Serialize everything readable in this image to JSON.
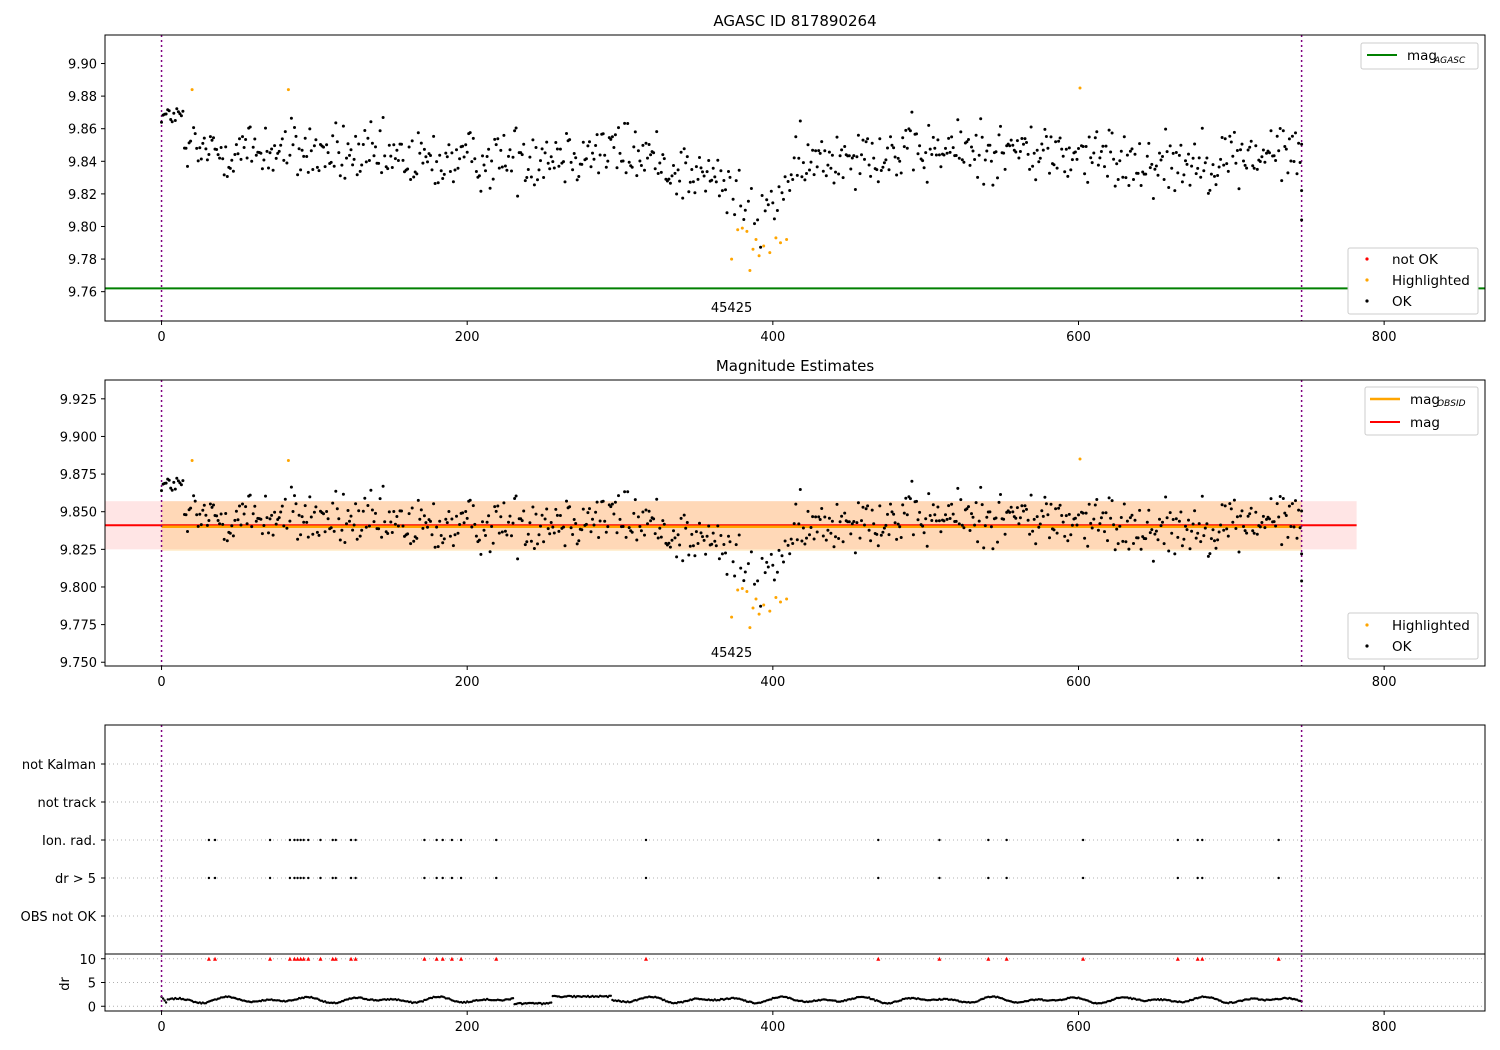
{
  "chart_data": [
    {
      "type": "scatter",
      "title": "AGASC ID 817890264",
      "xlim": [
        -37,
        866
      ],
      "ylim": [
        9.742,
        9.9175
      ],
      "xticks": [
        "0",
        "200",
        "400",
        "600",
        "800"
      ],
      "yticks": [
        "9.76",
        "9.78",
        "9.80",
        "9.82",
        "9.84",
        "9.86",
        "9.88",
        "9.90"
      ],
      "vlines": [
        0,
        746
      ],
      "hline": {
        "label": "mag",
        "sub": "AGASC",
        "y": 9.762,
        "color": "#008000"
      },
      "obsid_label": {
        "text": "45425",
        "x": 373
      },
      "legend_points": [
        "not OK",
        "Highlighted",
        "OK"
      ],
      "highlighted": [
        [
          20,
          9.884
        ],
        [
          83,
          9.884
        ],
        [
          373,
          9.78
        ],
        [
          377,
          9.798
        ],
        [
          380,
          9.799
        ],
        [
          383,
          9.797
        ],
        [
          385,
          9.773
        ],
        [
          387,
          9.786
        ],
        [
          389,
          9.792
        ],
        [
          391,
          9.782
        ],
        [
          394,
          9.788
        ],
        [
          398,
          9.784
        ],
        [
          402,
          9.793
        ],
        [
          405,
          9.79
        ],
        [
          409,
          9.792
        ],
        [
          601,
          9.885
        ]
      ]
    },
    {
      "type": "scatter",
      "title": "Magnitude Estimates",
      "xlim": [
        -37,
        866
      ],
      "ylim": [
        9.7475,
        9.9375
      ],
      "xticks": [
        "0",
        "200",
        "400",
        "600",
        "800"
      ],
      "yticks": [
        "9.750",
        "9.775",
        "9.800",
        "9.825",
        "9.850",
        "9.875",
        "9.900",
        "9.925"
      ],
      "vlines": [
        0,
        746
      ],
      "mag": 9.841,
      "mag_band": [
        9.825,
        9.857
      ],
      "mag_band_x": [
        -37,
        782
      ],
      "mag_obsid": 9.84,
      "mag_obsid_band": [
        9.824,
        9.857
      ],
      "mag_obsid_band_x": [
        0,
        746
      ],
      "legend_lines": [
        {
          "label": "mag",
          "sub": "OBSID",
          "color": "#ffa500"
        },
        {
          "label": "mag",
          "sub": "",
          "color": "#ff0000"
        }
      ],
      "obsid_label": {
        "text": "45425",
        "x": 373
      },
      "legend_points": [
        "Highlighted",
        "OK"
      ]
    },
    {
      "type": "scatter",
      "title": "",
      "xlim": [
        -37,
        866
      ],
      "xticks": [
        "0",
        "200",
        "400",
        "600",
        "800"
      ],
      "vlines": [
        0,
        746
      ],
      "categories": [
        "not Kalman",
        "not track",
        "Ion. rad.",
        "dr > 5",
        "OBS not OK"
      ],
      "flag_x": [
        31,
        35,
        71,
        84,
        87,
        89,
        91,
        93,
        96,
        104,
        112,
        114,
        124,
        127,
        172,
        180,
        184,
        190,
        196,
        219,
        317,
        469,
        509,
        541,
        553,
        603,
        665,
        678,
        681,
        731
      ],
      "dr_ylabel": "dr",
      "dr_ylim": [
        -1,
        11
      ],
      "dr_yticks": [
        "0",
        "5",
        "10"
      ]
    }
  ]
}
